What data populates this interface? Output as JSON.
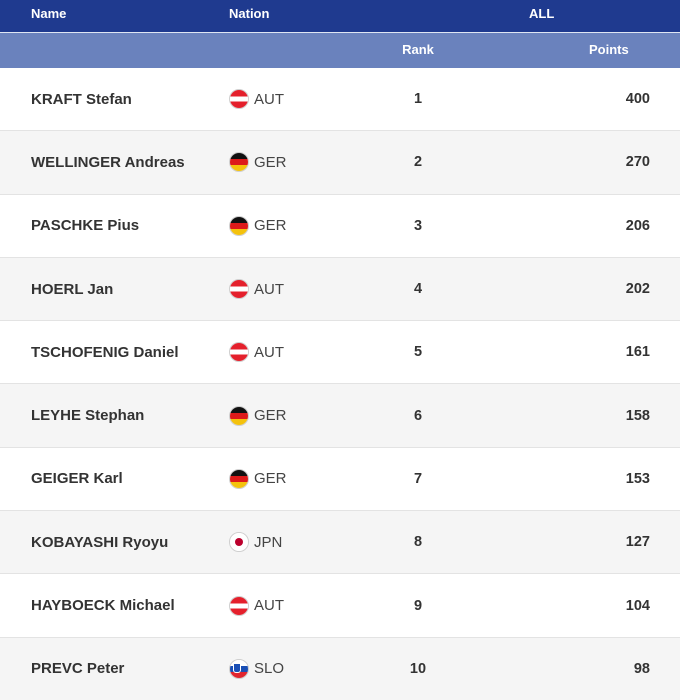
{
  "header": {
    "name_label": "Name",
    "nation_label": "Nation",
    "group_label": "ALL",
    "rank_label": "Rank",
    "points_label": "Points"
  },
  "rows": [
    {
      "name": "KRAFT Stefan",
      "nation": "AUT",
      "flag": "austria-flag-icon",
      "rank": "1",
      "points": "400"
    },
    {
      "name": "WELLINGER Andreas",
      "nation": "GER",
      "flag": "germany-flag-icon",
      "rank": "2",
      "points": "270"
    },
    {
      "name": "PASCHKE Pius",
      "nation": "GER",
      "flag": "germany-flag-icon",
      "rank": "3",
      "points": "206"
    },
    {
      "name": "HOERL Jan",
      "nation": "AUT",
      "flag": "austria-flag-icon",
      "rank": "4",
      "points": "202"
    },
    {
      "name": "TSCHOFENIG Daniel",
      "nation": "AUT",
      "flag": "austria-flag-icon",
      "rank": "5",
      "points": "161"
    },
    {
      "name": "LEYHE Stephan",
      "nation": "GER",
      "flag": "germany-flag-icon",
      "rank": "6",
      "points": "158"
    },
    {
      "name": "GEIGER Karl",
      "nation": "GER",
      "flag": "germany-flag-icon",
      "rank": "7",
      "points": "153"
    },
    {
      "name": "KOBAYASHI Ryoyu",
      "nation": "JPN",
      "flag": "japan-flag-icon",
      "rank": "8",
      "points": "127"
    },
    {
      "name": "HAYBOECK Michael",
      "nation": "AUT",
      "flag": "austria-flag-icon",
      "rank": "9",
      "points": "104"
    },
    {
      "name": "PREVC Peter",
      "nation": "SLO",
      "flag": "slovenia-flag-icon",
      "rank": "10",
      "points": "98"
    }
  ],
  "colors": {
    "header_primary": "#1f3a8f",
    "header_secondary": "#6a82bd",
    "row_alt": "#f5f5f5"
  }
}
